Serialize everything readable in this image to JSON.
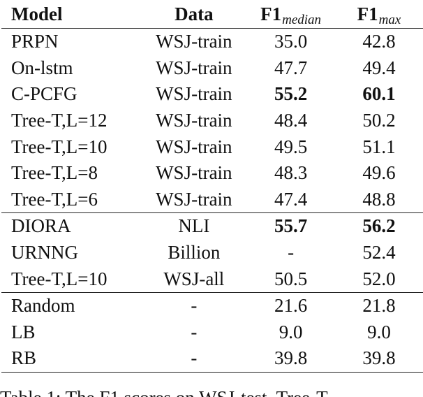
{
  "table": {
    "headers": {
      "model": "Model",
      "data": "Data",
      "f1_median_main": "F1",
      "f1_median_sub": "median",
      "f1_max_main": "F1",
      "f1_max_sub": "max"
    },
    "groups": [
      {
        "rows": [
          {
            "model": "PRPN",
            "data": "WSJ-train",
            "f1_median": "35.0",
            "f1_max": "42.8",
            "bold_median": false,
            "bold_max": false
          },
          {
            "model": "On-lstm",
            "data": "WSJ-train",
            "f1_median": "47.7",
            "f1_max": "49.4",
            "bold_median": false,
            "bold_max": false
          },
          {
            "model": "C-PCFG",
            "data": "WSJ-train",
            "f1_median": "55.2",
            "f1_max": "60.1",
            "bold_median": true,
            "bold_max": true
          },
          {
            "model": "Tree-T,L=12",
            "data": "WSJ-train",
            "f1_median": "48.4",
            "f1_max": "50.2",
            "bold_median": false,
            "bold_max": false
          },
          {
            "model": "Tree-T,L=10",
            "data": "WSJ-train",
            "f1_median": "49.5",
            "f1_max": "51.1",
            "bold_median": false,
            "bold_max": false
          },
          {
            "model": "Tree-T,L=8",
            "data": "WSJ-train",
            "f1_median": "48.3",
            "f1_max": "49.6",
            "bold_median": false,
            "bold_max": false
          },
          {
            "model": "Tree-T,L=6",
            "data": "WSJ-train",
            "f1_median": "47.4",
            "f1_max": "48.8",
            "bold_median": false,
            "bold_max": false
          }
        ]
      },
      {
        "rows": [
          {
            "model": "DIORA",
            "data": "NLI",
            "f1_median": "55.7",
            "f1_max": "56.2",
            "bold_median": true,
            "bold_max": true
          },
          {
            "model": "URNNG",
            "data": "Billion",
            "f1_median": "-",
            "f1_max": "52.4",
            "bold_median": false,
            "bold_max": false
          },
          {
            "model": "Tree-T,L=10",
            "data": "WSJ-all",
            "f1_median": "50.5",
            "f1_max": "52.0",
            "bold_median": false,
            "bold_max": false
          }
        ]
      },
      {
        "rows": [
          {
            "model": "Random",
            "data": "-",
            "f1_median": "21.6",
            "f1_max": "21.8",
            "bold_median": false,
            "bold_max": false
          },
          {
            "model": "LB",
            "data": "-",
            "f1_median": "9.0",
            "f1_max": "9.0",
            "bold_median": false,
            "bold_max": false
          },
          {
            "model": "RB",
            "data": "-",
            "f1_median": "39.8",
            "f1_max": "39.8",
            "bold_median": false,
            "bold_max": false
          }
        ]
      }
    ]
  },
  "caption": "Table 1: The F1 scores on WSJ-test. Tree-T"
}
